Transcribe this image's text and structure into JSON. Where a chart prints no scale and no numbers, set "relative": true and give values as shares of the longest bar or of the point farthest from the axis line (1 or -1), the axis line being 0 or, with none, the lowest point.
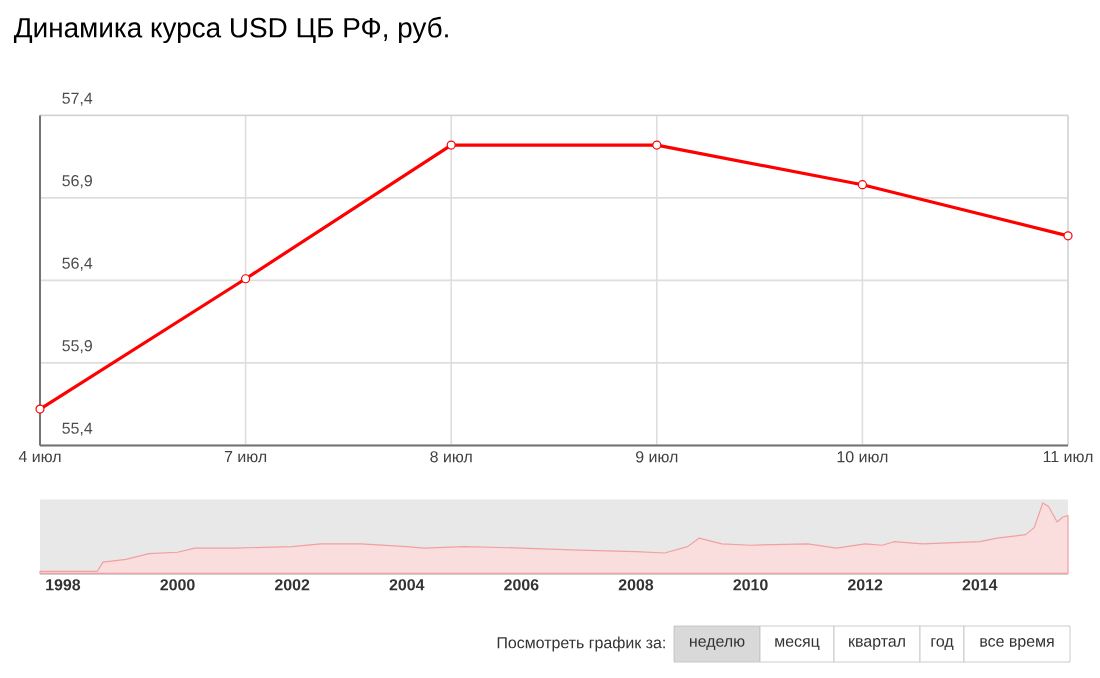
{
  "chart_data": [
    {
      "type": "line",
      "title": "Динамика курса USD ЦБ РФ, руб.",
      "categories": [
        "4 июл",
        "7 июл",
        "8 июл",
        "9 июл",
        "10 июл",
        "11 июл"
      ],
      "values": [
        55.62,
        56.41,
        57.22,
        57.22,
        56.98,
        56.67
      ],
      "color": "#ff0000",
      "marker": "circle",
      "grid": true,
      "ylim": [
        55.4,
        57.4
      ],
      "yticks": [
        {
          "value": 55.4,
          "label": "55,4"
        },
        {
          "value": 55.9,
          "label": "55,9"
        },
        {
          "value": 56.4,
          "label": "56,4"
        },
        {
          "value": 56.9,
          "label": "56,9"
        },
        {
          "value": 57.4,
          "label": "57,4"
        }
      ]
    },
    {
      "type": "area",
      "relative": true,
      "color": "#f0a0a0",
      "xlim": [
        1997.6,
        2015.54
      ],
      "xticks": [
        1998,
        2000,
        2002,
        2004,
        2006,
        2008,
        2010,
        2012,
        2014
      ],
      "x": [
        1997.6,
        1998.6,
        1998.7,
        1999.1,
        1999.5,
        2000,
        2000.3,
        2001,
        2002,
        2002.5,
        2003.2,
        2004,
        2004.3,
        2005,
        2006,
        2007,
        2008,
        2008.5,
        2008.9,
        2009.1,
        2009.5,
        2010,
        2011,
        2011.5,
        2012,
        2012.3,
        2012.5,
        2013,
        2014,
        2014.3,
        2014.8,
        2014.95,
        2015.1,
        2015.2,
        2015.35,
        2015.45,
        2015.54
      ],
      "values": [
        0.03,
        0.03,
        0.16,
        0.2,
        0.28,
        0.3,
        0.36,
        0.36,
        0.38,
        0.42,
        0.42,
        0.38,
        0.36,
        0.38,
        0.36,
        0.33,
        0.31,
        0.29,
        0.38,
        0.5,
        0.42,
        0.4,
        0.42,
        0.36,
        0.42,
        0.4,
        0.45,
        0.42,
        0.45,
        0.5,
        0.55,
        0.65,
        1.0,
        0.95,
        0.73,
        0.8,
        0.82
      ],
      "annotations": [
        "Посмотреть график за:",
        "неделю",
        "месяц",
        "квартал",
        "год",
        "все время"
      ]
    }
  ]
}
